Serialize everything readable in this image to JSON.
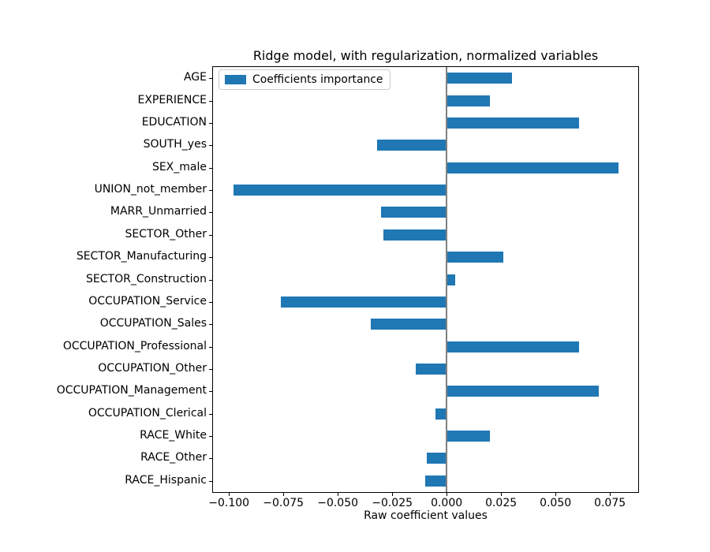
{
  "chart_data": {
    "type": "bar",
    "orientation": "horizontal",
    "title": "Ridge model, with regularization, normalized variables",
    "xlabel": "Raw coefficient values",
    "ylabel": "",
    "legend": {
      "label": "Coefficients importance",
      "position": "upper left"
    },
    "categories": [
      "AGE",
      "EXPERIENCE",
      "EDUCATION",
      "SOUTH_yes",
      "SEX_male",
      "UNION_not_member",
      "MARR_Unmarried",
      "SECTOR_Other",
      "SECTOR_Manufacturing",
      "SECTOR_Construction",
      "OCCUPATION_Service",
      "OCCUPATION_Sales",
      "OCCUPATION_Professional",
      "OCCUPATION_Other",
      "OCCUPATION_Management",
      "OCCUPATION_Clerical",
      "RACE_White",
      "RACE_Other",
      "RACE_Hispanic"
    ],
    "values": [
      0.03,
      0.02,
      0.061,
      -0.032,
      0.079,
      -0.098,
      -0.03,
      -0.029,
      0.026,
      0.004,
      -0.076,
      -0.035,
      0.061,
      -0.014,
      0.07,
      -0.005,
      0.02,
      -0.009,
      -0.01
    ],
    "xlim": [
      -0.1073,
      0.088
    ],
    "xticks": [
      -0.1,
      -0.075,
      -0.05,
      -0.025,
      0.0,
      0.025,
      0.05,
      0.075
    ],
    "xtick_labels": [
      "−0.100",
      "−0.075",
      "−0.050",
      "−0.025",
      "0.000",
      "0.025",
      "0.050",
      "0.075"
    ],
    "bar_color": "#1f77b4",
    "zero_line_color": "#808080",
    "grid": false
  }
}
